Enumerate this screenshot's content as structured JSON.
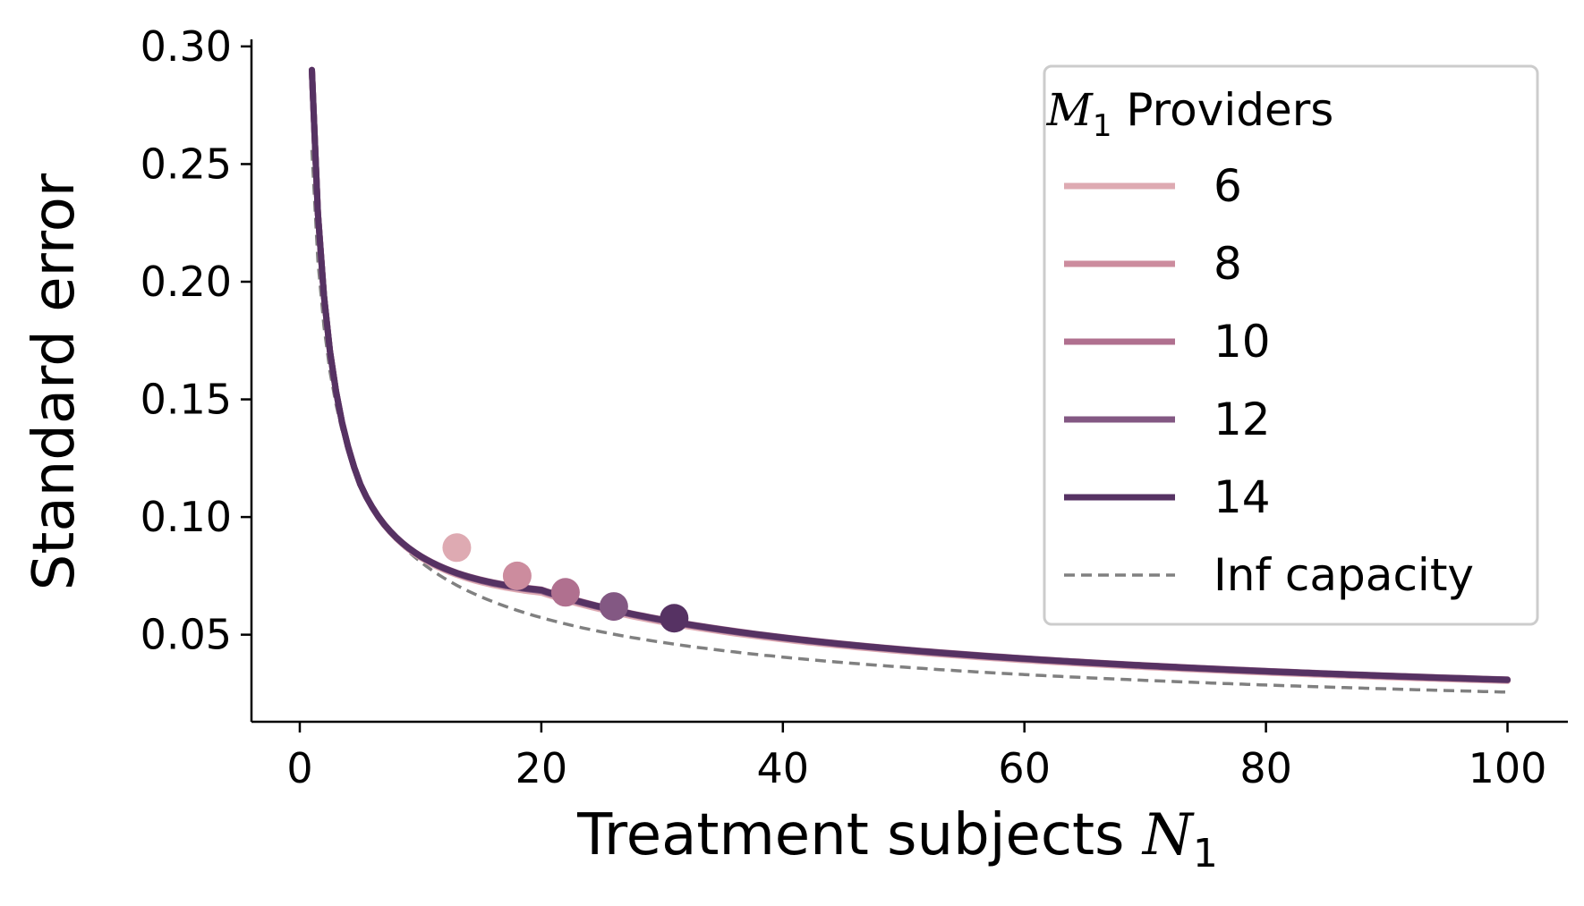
{
  "chart_data": {
    "type": "line",
    "xlabel": "Treatment subjects",
    "xlabel_math": "N",
    "xlabel_sub": "1",
    "ylabel": "Standard error",
    "xlim": [
      -4,
      105
    ],
    "ylim": [
      0.013,
      0.303
    ],
    "xticks": [
      0,
      20,
      40,
      60,
      80,
      100
    ],
    "yticks": [
      0.05,
      0.1,
      0.15,
      0.2,
      0.25,
      0.3
    ],
    "ytick_labels": [
      "0.05",
      "0.10",
      "0.15",
      "0.20",
      "0.25",
      "0.30"
    ],
    "legend": {
      "title_math": "M",
      "title_sub": "1",
      "title_text": "Providers",
      "position": "top-right"
    },
    "x_range": [
      1,
      100
    ],
    "series": [
      {
        "name": "6",
        "M": 6,
        "color": "#deaab2",
        "marker": {
          "x": 13,
          "y": 0.087
        }
      },
      {
        "name": "8",
        "M": 8,
        "color": "#cc8c9e",
        "marker": {
          "x": 18,
          "y": 0.075
        }
      },
      {
        "name": "10",
        "M": 10,
        "color": "#b0708f",
        "marker": {
          "x": 22,
          "y": 0.068
        }
      },
      {
        "name": "12",
        "M": 12,
        "color": "#835883",
        "marker": {
          "x": 26,
          "y": 0.062
        }
      },
      {
        "name": "14",
        "M": 14,
        "color": "#563263",
        "marker": {
          "x": 31,
          "y": 0.057
        }
      }
    ],
    "reference": {
      "name": "Inf capacity",
      "color": "#808080",
      "style": "dashed",
      "se_at_1": 0.256
    }
  }
}
